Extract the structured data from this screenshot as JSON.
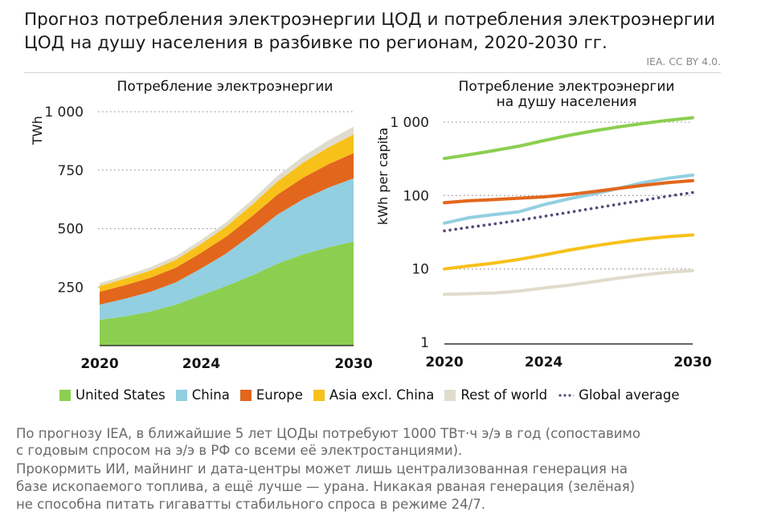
{
  "header": {
    "title_line1": "Прогноз потребления электроэнергии ЦОД и потребления электроэнергии",
    "title_line2": "ЦОД на душу населения в разбивке по регионам, 2020-2030 гг.",
    "source": "IEA. CC BY 4.0."
  },
  "chart_data": [
    {
      "type": "area",
      "title": "Потребление электроэнергии",
      "ylabel": "TWh",
      "xlabel": "",
      "x": [
        2020,
        2021,
        2022,
        2023,
        2024,
        2025,
        2026,
        2027,
        2028,
        2029,
        2030
      ],
      "x_ticks": [
        "2020",
        "2024",
        "2030"
      ],
      "y_ticks": [
        "250",
        "500",
        "750",
        "1 000"
      ],
      "ylim": [
        0,
        1000
      ],
      "stacked": true,
      "grid": "dotted-horizontal",
      "series": [
        {
          "name": "United States",
          "color": "#8ccf50",
          "values": [
            110,
            125,
            145,
            175,
            215,
            255,
            300,
            350,
            390,
            420,
            445
          ]
        },
        {
          "name": "China",
          "color": "#92cfe0",
          "values": [
            65,
            75,
            85,
            95,
            115,
            140,
            175,
            210,
            235,
            255,
            270
          ]
        },
        {
          "name": "Europe",
          "color": "#e2661c",
          "values": [
            55,
            58,
            60,
            63,
            67,
            72,
            78,
            85,
            92,
            100,
            108
          ]
        },
        {
          "name": "Asia excl. China",
          "color": "#f8c11a",
          "values": [
            25,
            28,
            31,
            34,
            38,
            43,
            49,
            56,
            64,
            72,
            80
          ]
        },
        {
          "name": "Rest of world",
          "color": "#e0dccd",
          "values": [
            12,
            13,
            14,
            15,
            17,
            19,
            21,
            24,
            27,
            30,
            33
          ]
        }
      ]
    },
    {
      "type": "line",
      "title": "Потребление электроэнергии на душу населения",
      "title_line1": "Потребление электроэнергии",
      "title_line2": "на душу населения",
      "ylabel": "kWh per capita",
      "xlabel": "",
      "yscale": "log",
      "x": [
        2020,
        2021,
        2022,
        2023,
        2024,
        2025,
        2026,
        2027,
        2028,
        2029,
        2030
      ],
      "x_ticks": [
        "2020",
        "2024",
        "2030"
      ],
      "y_ticks": [
        "1",
        "10",
        "100",
        "1 000"
      ],
      "ylim": [
        1,
        1000
      ],
      "grid": "dotted-horizontal",
      "series": [
        {
          "name": "United States",
          "color": "#8ccf50",
          "style": "solid",
          "values": [
            320,
            360,
            410,
            470,
            560,
            660,
            760,
            860,
            960,
            1060,
            1150
          ]
        },
        {
          "name": "China",
          "color": "#92cfe0",
          "style": "solid",
          "values": [
            42,
            50,
            55,
            60,
            75,
            90,
            105,
            125,
            150,
            172,
            190
          ]
        },
        {
          "name": "Europe",
          "color": "#e2661c",
          "style": "solid",
          "values": [
            80,
            85,
            88,
            92,
            96,
            103,
            113,
            125,
            138,
            150,
            160
          ]
        },
        {
          "name": "Asia excl. China",
          "color": "#f8c11a",
          "style": "solid",
          "values": [
            10,
            11,
            12,
            13.5,
            15.5,
            18,
            20.5,
            23,
            25.5,
            27.5,
            29
          ]
        },
        {
          "name": "Rest of world",
          "color": "#e0dccd",
          "style": "solid",
          "values": [
            4.5,
            4.6,
            4.7,
            5.0,
            5.5,
            6.0,
            6.7,
            7.5,
            8.3,
            9.0,
            9.5
          ]
        },
        {
          "name": "Global average",
          "color": "#5a4a7a",
          "style": "dotted",
          "values": [
            33,
            37,
            41,
            46,
            52,
            59,
            67,
            76,
            86,
            98,
            110
          ]
        }
      ]
    }
  ],
  "legend": {
    "items": [
      {
        "label": "United States",
        "color": "#8ccf50",
        "kind": "swatch"
      },
      {
        "label": "China",
        "color": "#92cfe0",
        "kind": "swatch"
      },
      {
        "label": "Europe",
        "color": "#e2661c",
        "kind": "swatch"
      },
      {
        "label": "Asia excl. China",
        "color": "#f8c11a",
        "kind": "swatch"
      },
      {
        "label": "Rest of world",
        "color": "#e0dccd",
        "kind": "swatch"
      },
      {
        "label": "Global average",
        "color": "#5a4a7a",
        "kind": "dots"
      }
    ]
  },
  "footnote": {
    "line1": "По прогнозу IEA, в ближайшие 5 лет ЦОДы потребуют 1000 ТВт·ч э/э в год (сопоставимо",
    "line2": "с годовым спросом на э/э в РФ со всеми её электростанциями).",
    "line3": "Прокормить ИИ, майнинг и дата-центры может лишь централизованная генерация на",
    "line4": "базе ископаемого топлива, а ещё лучше — урана. Никакая рваная генерация (зелёная)",
    "line5": "не способна питать гигаватты стабильного спроса в режиме 24/7."
  }
}
